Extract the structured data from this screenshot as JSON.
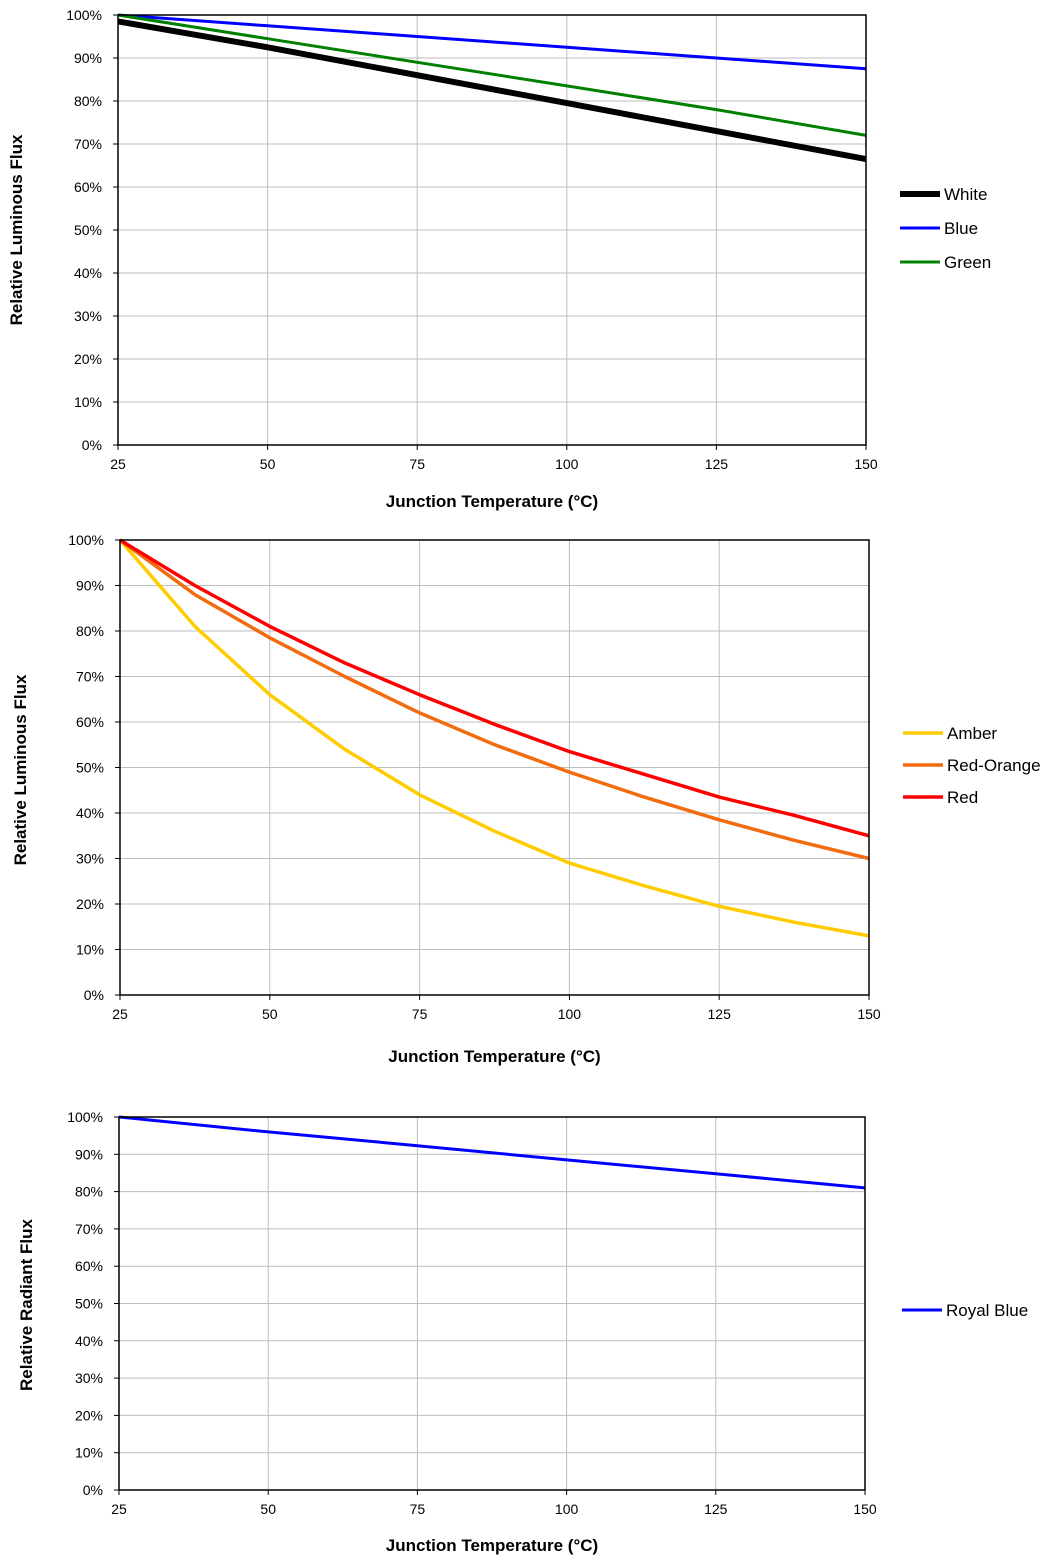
{
  "chart_data": [
    {
      "type": "line",
      "xlabel": "Junction Temperature (°C)",
      "ylabel": "Relative Luminous Flux",
      "xlim": [
        25,
        150
      ],
      "ylim": [
        0,
        100
      ],
      "x_ticks": [
        "25",
        "50",
        "75",
        "100",
        "125",
        "150"
      ],
      "y_ticks": [
        "0%",
        "10%",
        "20%",
        "30%",
        "40%",
        "50%",
        "60%",
        "70%",
        "80%",
        "90%",
        "100%"
      ],
      "grid": true,
      "legend_position": "right",
      "x": [
        25,
        50,
        75,
        100,
        125,
        150
      ],
      "series": [
        {
          "name": "White",
          "color": "#000000",
          "values": [
            98.5,
            92.5,
            86,
            79.5,
            73,
            66.5
          ]
        },
        {
          "name": "Blue",
          "color": "#0000ff",
          "values": [
            100,
            97.5,
            95,
            92.5,
            90,
            87.5
          ]
        },
        {
          "name": "Green",
          "color": "#008000",
          "values": [
            100,
            94.5,
            89,
            83.5,
            78,
            72
          ]
        }
      ]
    },
    {
      "type": "line",
      "xlabel": "Junction Temperature (°C)",
      "ylabel": "Relative Luminous Flux",
      "xlim": [
        25,
        150
      ],
      "ylim": [
        0,
        100
      ],
      "x_ticks": [
        "25",
        "50",
        "75",
        "100",
        "125",
        "150"
      ],
      "y_ticks": [
        "0%",
        "10%",
        "20%",
        "30%",
        "40%",
        "50%",
        "60%",
        "70%",
        "80%",
        "90%",
        "100%"
      ],
      "grid": true,
      "legend_position": "right",
      "x": [
        25,
        37.5,
        50,
        62.5,
        75,
        87.5,
        100,
        112.5,
        125,
        137.5,
        150
      ],
      "series": [
        {
          "name": "Amber",
          "color": "#ffcc00",
          "values": [
            100,
            81,
            66,
            54,
            44,
            36,
            29,
            24,
            19.5,
            16,
            13
          ]
        },
        {
          "name": "Red-Orange",
          "color": "#f26b0f",
          "values": [
            100,
            88,
            78.5,
            70,
            62,
            55,
            49,
            43.5,
            38.5,
            34,
            30
          ]
        },
        {
          "name": "Red",
          "color": "#ff0000",
          "values": [
            100,
            90,
            81,
            73,
            66,
            59.5,
            53.5,
            48.5,
            43.5,
            39.5,
            35
          ]
        }
      ]
    },
    {
      "type": "line",
      "xlabel": "Junction Temperature (°C)",
      "ylabel": "Relative Radiant Flux",
      "xlim": [
        25,
        150
      ],
      "ylim": [
        0,
        100
      ],
      "x_ticks": [
        "25",
        "50",
        "75",
        "100",
        "125",
        "150"
      ],
      "y_ticks": [
        "0%",
        "10%",
        "20%",
        "30%",
        "40%",
        "50%",
        "60%",
        "70%",
        "80%",
        "90%",
        "100%"
      ],
      "grid": true,
      "legend_position": "right",
      "x": [
        25,
        50,
        75,
        100,
        125,
        150
      ],
      "series": [
        {
          "name": "Royal Blue",
          "color": "#0000ff",
          "values": [
            100,
            96,
            92.3,
            88.5,
            84.8,
            81
          ]
        }
      ]
    }
  ]
}
